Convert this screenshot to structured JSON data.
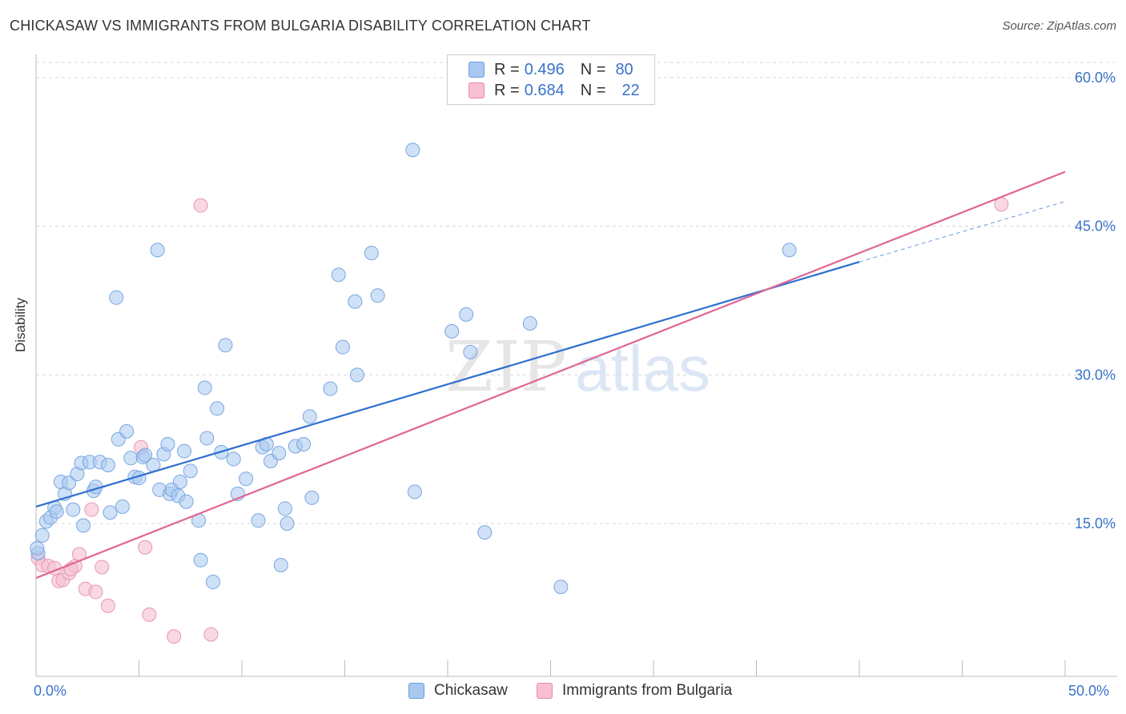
{
  "title": "CHICKASAW VS IMMIGRANTS FROM BULGARIA DISABILITY CORRELATION CHART",
  "source": "Source: ZipAtlas.com",
  "watermark": {
    "zip": "ZIP",
    "atlas": "atlas"
  },
  "legend": {
    "r_label": "R =",
    "n_label": "N =",
    "series": [
      {
        "name": "Chickasaw",
        "r": "0.496",
        "n": "80",
        "fill": "#a8c8f0",
        "stroke": "#6a9fe0"
      },
      {
        "name": "Immigrants from Bulgaria",
        "r": "0.684",
        "n": "22",
        "fill": "#f8bfd0",
        "stroke": "#e88aa8"
      }
    ]
  },
  "colors": {
    "blue_line": "#2e6fcf",
    "pink_line": "#e06694",
    "blue_point_fill": "#a8c8f0",
    "blue_point_stroke": "#7aa6e0",
    "pink_point_fill": "#f6c3d3",
    "pink_point_stroke": "#e896b2",
    "grid": "#d8d8d8",
    "tick_label": "#3a73c8"
  },
  "chart_data": {
    "type": "scatter",
    "title": "CHICKASAW VS IMMIGRANTS FROM BULGARIA DISABILITY CORRELATION CHART",
    "xlabel": "",
    "ylabel": "Disability",
    "xlim": [
      0,
      50
    ],
    "ylim": [
      0,
      62
    ],
    "x_tick_labels": [
      "0.0%",
      "50.0%"
    ],
    "y_ticks": [
      15,
      30,
      45,
      60
    ],
    "y_tick_labels": [
      "15.0%",
      "30.0%",
      "45.0%",
      "60.0%"
    ],
    "grid": true,
    "series": [
      {
        "name": "Chickasaw",
        "trend": {
          "x0": 0,
          "y0": 16.7,
          "x1": 40,
          "y1": 41.4,
          "dashed_to_x": 50,
          "dashed_to_y": 47.5
        },
        "points": [
          [
            0.1,
            12.0
          ],
          [
            0.3,
            13.8
          ],
          [
            0.5,
            15.2
          ],
          [
            0.7,
            15.6
          ],
          [
            0.9,
            16.6
          ],
          [
            1.0,
            16.2
          ],
          [
            1.2,
            19.2
          ],
          [
            1.4,
            18.0
          ],
          [
            1.6,
            19.1
          ],
          [
            1.8,
            16.4
          ],
          [
            2.0,
            20.0
          ],
          [
            2.2,
            21.1
          ],
          [
            2.3,
            14.8
          ],
          [
            2.6,
            21.2
          ],
          [
            2.8,
            18.3
          ],
          [
            2.9,
            18.7
          ],
          [
            3.1,
            21.2
          ],
          [
            3.5,
            20.9
          ],
          [
            3.6,
            16.1
          ],
          [
            3.9,
            37.8
          ],
          [
            4.0,
            23.5
          ],
          [
            4.2,
            16.7
          ],
          [
            4.4,
            24.3
          ],
          [
            4.6,
            21.6
          ],
          [
            4.8,
            19.7
          ],
          [
            5.0,
            19.6
          ],
          [
            5.2,
            21.7
          ],
          [
            5.3,
            21.9
          ],
          [
            5.7,
            20.9
          ],
          [
            5.9,
            42.6
          ],
          [
            6.0,
            18.4
          ],
          [
            6.2,
            22.0
          ],
          [
            6.4,
            23.0
          ],
          [
            6.5,
            18.0
          ],
          [
            6.6,
            18.4
          ],
          [
            6.9,
            17.8
          ],
          [
            7.0,
            19.2
          ],
          [
            7.2,
            22.3
          ],
          [
            7.3,
            17.2
          ],
          [
            7.5,
            20.3
          ],
          [
            7.9,
            15.3
          ],
          [
            8.0,
            11.3
          ],
          [
            8.2,
            28.7
          ],
          [
            8.3,
            23.6
          ],
          [
            8.6,
            9.1
          ],
          [
            8.8,
            26.6
          ],
          [
            9.0,
            22.2
          ],
          [
            9.2,
            33.0
          ],
          [
            9.6,
            21.5
          ],
          [
            9.8,
            18.0
          ],
          [
            10.2,
            19.5
          ],
          [
            10.8,
            15.3
          ],
          [
            11.0,
            22.7
          ],
          [
            11.2,
            23.0
          ],
          [
            11.4,
            21.3
          ],
          [
            11.8,
            22.1
          ],
          [
            11.9,
            10.8
          ],
          [
            12.1,
            16.5
          ],
          [
            12.2,
            15.0
          ],
          [
            12.6,
            22.8
          ],
          [
            13.0,
            23.0
          ],
          [
            13.3,
            25.8
          ],
          [
            13.4,
            17.6
          ],
          [
            14.3,
            28.6
          ],
          [
            14.7,
            40.1
          ],
          [
            14.9,
            32.8
          ],
          [
            15.5,
            37.4
          ],
          [
            15.6,
            30.0
          ],
          [
            16.3,
            42.3
          ],
          [
            16.6,
            38.0
          ],
          [
            18.3,
            52.7
          ],
          [
            18.4,
            18.2
          ],
          [
            20.2,
            34.4
          ],
          [
            20.9,
            36.1
          ],
          [
            21.1,
            32.3
          ],
          [
            21.8,
            14.1
          ],
          [
            24.0,
            35.2
          ],
          [
            25.5,
            8.6
          ],
          [
            36.6,
            42.6
          ],
          [
            0.05,
            12.5
          ]
        ]
      },
      {
        "name": "Immigrants from Bulgaria",
        "trend": {
          "x0": 0,
          "y0": 9.5,
          "x1": 50,
          "y1": 50.5
        },
        "points": [
          [
            0.1,
            11.5
          ],
          [
            0.3,
            10.8
          ],
          [
            0.6,
            10.7
          ],
          [
            0.9,
            10.5
          ],
          [
            1.1,
            9.2
          ],
          [
            1.3,
            9.3
          ],
          [
            1.6,
            10.0
          ],
          [
            1.9,
            10.7
          ],
          [
            2.1,
            11.9
          ],
          [
            2.4,
            8.4
          ],
          [
            2.7,
            16.4
          ],
          [
            2.9,
            8.1
          ],
          [
            3.2,
            10.6
          ],
          [
            3.5,
            6.7
          ],
          [
            5.1,
            22.7
          ],
          [
            5.3,
            12.6
          ],
          [
            5.5,
            5.8
          ],
          [
            6.7,
            3.6
          ],
          [
            8.0,
            47.1
          ],
          [
            8.5,
            3.8
          ],
          [
            1.7,
            10.4
          ],
          [
            46.9,
            47.2
          ]
        ]
      }
    ]
  }
}
